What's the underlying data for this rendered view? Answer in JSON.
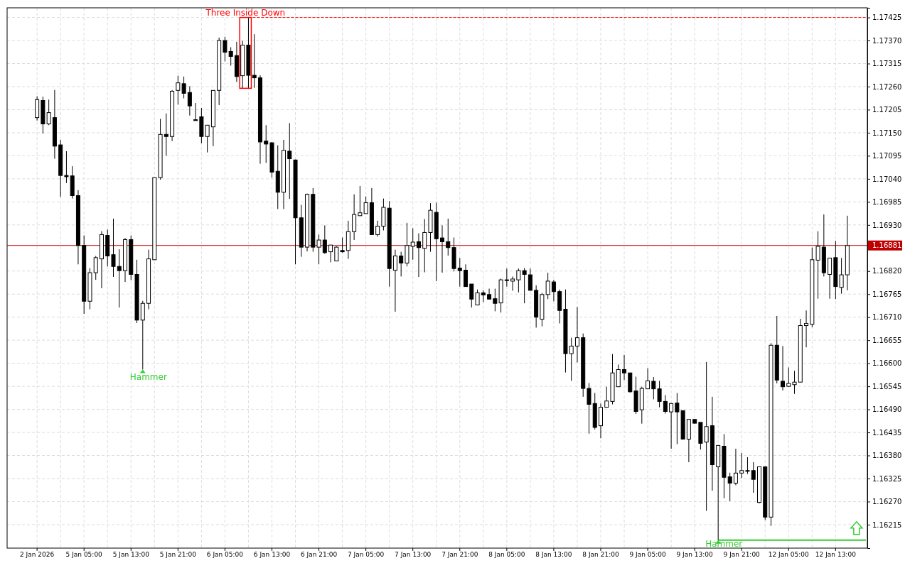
{
  "chart_data": {
    "type": "candlestick",
    "color": "#000000",
    "grid": true,
    "categories": [
      "2 Jan 2026",
      null,
      null,
      null,
      null,
      null,
      null,
      null,
      "5 Jan 05:00",
      null,
      null,
      null,
      null,
      null,
      null,
      null,
      "5 Jan 13:00",
      null,
      null,
      null,
      null,
      null,
      null,
      null,
      "5 Jan 21:00",
      null,
      null,
      null,
      null,
      null,
      null,
      null,
      "6 Jan 05:00",
      null,
      null,
      null,
      null,
      null,
      null,
      null,
      "6 Jan 13:00",
      null,
      null,
      null,
      null,
      null,
      null,
      null,
      "6 Jan 21:00",
      null,
      null,
      null,
      null,
      null,
      null,
      null,
      "7 Jan 05:00",
      null,
      null,
      null,
      null,
      null,
      null,
      null,
      "7 Jan 13:00",
      null,
      null,
      null,
      null,
      null,
      null,
      null,
      "7 Jan 21:00",
      null,
      null,
      null,
      null,
      null,
      null,
      null,
      "8 Jan 05:00",
      null,
      null,
      null,
      null,
      null,
      null,
      null,
      "8 Jan 13:00",
      null,
      null,
      null,
      null,
      null,
      null,
      null,
      "8 Jan 21:00",
      null,
      null,
      null,
      null,
      null,
      null,
      null,
      "9 Jan 05:00",
      null,
      null,
      null,
      null,
      null,
      null,
      null,
      "9 Jan 13:00",
      null,
      null,
      null,
      null,
      null,
      null,
      null,
      "9 Jan 21:00",
      null,
      null,
      null,
      null,
      null,
      null,
      null,
      "12 Jan 05:00",
      null,
      null,
      null,
      null,
      null,
      null,
      null,
      "12 Jan 13:00",
      null,
      null
    ],
    "ohlc": [
      [
        1.17186,
        1.17237,
        1.17179,
        1.17229
      ],
      [
        1.17227,
        1.17236,
        1.17148,
        1.17171
      ],
      [
        1.17171,
        1.17229,
        1.17168,
        1.17198
      ],
      [
        1.17186,
        1.17252,
        1.17088,
        1.17118
      ],
      [
        1.17121,
        1.17133,
        1.16997,
        1.17048
      ],
      [
        1.17048,
        1.17106,
        1.1703,
        1.17045
      ],
      [
        1.17047,
        1.1707,
        1.16993,
        1.17
      ],
      [
        1.17,
        1.17013,
        1.16836,
        1.16881
      ],
      [
        1.16881,
        1.16905,
        1.16718,
        1.16748
      ],
      [
        1.16748,
        1.16827,
        1.16729,
        1.16816
      ],
      [
        1.16816,
        1.16856,
        1.16799,
        1.16852
      ],
      [
        1.16849,
        1.16915,
        1.16779,
        1.16907
      ],
      [
        1.16905,
        1.16919,
        1.16831,
        1.16856
      ],
      [
        1.16859,
        1.16945,
        1.16806,
        1.16831
      ],
      [
        1.16831,
        1.16872,
        1.16733,
        1.16821
      ],
      [
        1.16821,
        1.16899,
        1.16794,
        1.16895
      ],
      [
        1.16895,
        1.16905,
        1.16798,
        1.16812
      ],
      [
        1.16812,
        1.16847,
        1.16696,
        1.16703
      ],
      [
        1.16703,
        1.16749,
        1.16585,
        1.16743
      ],
      [
        1.16743,
        1.16871,
        1.16729,
        1.16849
      ],
      [
        1.16847,
        1.17043,
        1.16847,
        1.17043
      ],
      [
        1.17043,
        1.17183,
        1.17038,
        1.17146
      ],
      [
        1.17146,
        1.17196,
        1.17095,
        1.17141
      ],
      [
        1.17141,
        1.17252,
        1.1713,
        1.17249
      ],
      [
        1.17251,
        1.17286,
        1.17217,
        1.17269
      ],
      [
        1.17267,
        1.17284,
        1.17232,
        1.17244
      ],
      [
        1.17246,
        1.17261,
        1.17191,
        1.17214
      ],
      [
        1.17181,
        1.17221,
        1.17179,
        1.17179
      ],
      [
        1.17188,
        1.17209,
        1.17125,
        1.17141
      ],
      [
        1.17141,
        1.17168,
        1.17103,
        1.17168
      ],
      [
        1.17164,
        1.17251,
        1.17118,
        1.17251
      ],
      [
        1.17251,
        1.17377,
        1.17216,
        1.1737
      ],
      [
        1.1737,
        1.17379,
        1.1732,
        1.17342
      ],
      [
        1.17344,
        1.17354,
        1.1731,
        1.17332
      ],
      [
        1.17334,
        1.17367,
        1.17271,
        1.17284
      ],
      [
        1.17286,
        1.17369,
        1.17256,
        1.17359
      ],
      [
        1.17359,
        1.17425,
        1.17256,
        1.17287
      ],
      [
        1.17287,
        1.17385,
        1.17257,
        1.17281
      ],
      [
        1.17281,
        1.17287,
        1.17076,
        1.17128
      ],
      [
        1.1713,
        1.17168,
        1.17078,
        1.17123
      ],
      [
        1.17126,
        1.17128,
        1.17043,
        1.17056
      ],
      [
        1.17058,
        1.1712,
        1.16968,
        1.17008
      ],
      [
        1.17008,
        1.17133,
        1.16968,
        1.17108
      ],
      [
        1.17106,
        1.17173,
        1.16992,
        1.17088
      ],
      [
        1.17085,
        1.17086,
        1.16836,
        1.16947
      ],
      [
        1.16947,
        1.16978,
        1.16854,
        1.16877
      ],
      [
        1.16877,
        1.17005,
        1.16867,
        1.17003
      ],
      [
        1.17003,
        1.17018,
        1.16866,
        1.16877
      ],
      [
        1.16877,
        1.16907,
        1.16836,
        1.16894
      ],
      [
        1.16894,
        1.16929,
        1.16861,
        1.16864
      ],
      [
        1.16866,
        1.16882,
        1.16841,
        1.16882
      ],
      [
        1.16844,
        1.16879,
        1.16844,
        1.16877
      ],
      [
        1.16869,
        1.169,
        1.16864,
        1.16866
      ],
      [
        1.16869,
        1.1694,
        1.16849,
        1.16914
      ],
      [
        1.16914,
        1.17003,
        1.16894,
        1.16955
      ],
      [
        1.16952,
        1.17023,
        1.16952,
        1.16959
      ],
      [
        1.16957,
        1.16998,
        1.16957,
        1.16983
      ],
      [
        1.16983,
        1.17018,
        1.16907,
        1.16907
      ],
      [
        1.16907,
        1.1694,
        1.16902,
        1.16927
      ],
      [
        1.16927,
        1.16993,
        1.16917,
        1.16972
      ],
      [
        1.1697,
        1.16987,
        1.16783,
        1.16826
      ],
      [
        1.16822,
        1.16871,
        1.16723,
        1.16856
      ],
      [
        1.16856,
        1.16866,
        1.16807,
        1.16839
      ],
      [
        1.16839,
        1.16935,
        1.16831,
        1.16881
      ],
      [
        1.16879,
        1.16922,
        1.16847,
        1.16889
      ],
      [
        1.1689,
        1.1691,
        1.16806,
        1.16876
      ],
      [
        1.16874,
        1.16944,
        1.16817,
        1.16912
      ],
      [
        1.16912,
        1.16982,
        1.16866,
        1.16965
      ],
      [
        1.1696,
        1.16983,
        1.16796,
        1.16897
      ],
      [
        1.16899,
        1.16929,
        1.16816,
        1.1689
      ],
      [
        1.1689,
        1.16945,
        1.16857,
        1.16876
      ],
      [
        1.16876,
        1.169,
        1.16819,
        1.16826
      ],
      [
        1.16827,
        1.16851,
        1.16783,
        1.16821
      ],
      [
        1.16822,
        1.16836,
        1.16783,
        1.16783
      ],
      [
        1.16789,
        1.16789,
        1.16733,
        1.16753
      ],
      [
        1.16739,
        1.16776,
        1.16739,
        1.16768
      ],
      [
        1.16768,
        1.16774,
        1.16746,
        1.16763
      ],
      [
        1.16764,
        1.16778,
        1.16753,
        1.16753
      ],
      [
        1.16754,
        1.16778,
        1.16724,
        1.16743
      ],
      [
        1.16744,
        1.16802,
        1.16721,
        1.16799
      ],
      [
        1.16799,
        1.16826,
        1.16783,
        1.16798
      ],
      [
        1.16796,
        1.16807,
        1.16773,
        1.16801
      ],
      [
        1.16799,
        1.16826,
        1.16769,
        1.16821
      ],
      [
        1.16821,
        1.16827,
        1.16743,
        1.16812
      ],
      [
        1.16811,
        1.16826,
        1.16774,
        1.16774
      ],
      [
        1.16774,
        1.16786,
        1.16685,
        1.1671
      ],
      [
        1.16705,
        1.16768,
        1.16688,
        1.16764
      ],
      [
        1.16764,
        1.16816,
        1.16753,
        1.16796
      ],
      [
        1.16794,
        1.16799,
        1.16748,
        1.16771
      ],
      [
        1.16771,
        1.16776,
        1.16695,
        1.16726
      ],
      [
        1.16729,
        1.16776,
        1.16578,
        1.16623
      ],
      [
        1.16623,
        1.16661,
        1.16558,
        1.16641
      ],
      [
        1.16641,
        1.16734,
        1.16602,
        1.16661
      ],
      [
        1.16661,
        1.16671,
        1.1652,
        1.1654
      ],
      [
        1.1654,
        1.16553,
        1.16432,
        1.16502
      ],
      [
        1.16504,
        1.16529,
        1.16442,
        1.16447
      ],
      [
        1.16451,
        1.16504,
        1.16421,
        1.16495
      ],
      [
        1.16495,
        1.16544,
        1.16494,
        1.1651
      ],
      [
        1.16509,
        1.16622,
        1.16502,
        1.16577
      ],
      [
        1.16544,
        1.16597,
        1.16544,
        1.16585
      ],
      [
        1.16585,
        1.1662,
        1.1656,
        1.16577
      ],
      [
        1.16577,
        1.16577,
        1.1653,
        1.16532
      ],
      [
        1.16534,
        1.16568,
        1.16479,
        1.16485
      ],
      [
        1.16489,
        1.16544,
        1.16456,
        1.1654
      ],
      [
        1.16539,
        1.16588,
        1.16539,
        1.16558
      ],
      [
        1.16557,
        1.16567,
        1.16514,
        1.16539
      ],
      [
        1.16539,
        1.16558,
        1.16495,
        1.16509
      ],
      [
        1.16509,
        1.16524,
        1.1648,
        1.16485
      ],
      [
        1.16484,
        1.16505,
        1.16396,
        1.16504
      ],
      [
        1.16505,
        1.16529,
        1.16407,
        1.16484
      ],
      [
        1.16487,
        1.16487,
        1.16419,
        1.16419
      ],
      [
        1.16419,
        1.16466,
        1.16364,
        1.16466
      ],
      [
        1.16466,
        1.16466,
        1.16456,
        1.16457
      ],
      [
        1.16459,
        1.16459,
        1.16394,
        1.16409
      ],
      [
        1.16412,
        1.16603,
        1.16248,
        1.16449
      ],
      [
        1.16451,
        1.1652,
        1.16296,
        1.16358
      ],
      [
        1.16353,
        1.16404,
        1.16178,
        1.16404
      ],
      [
        1.16402,
        1.16431,
        1.16278,
        1.16328
      ],
      [
        1.16329,
        1.16339,
        1.16271,
        1.16314
      ],
      [
        1.16314,
        1.16396,
        1.16309,
        1.16338
      ],
      [
        1.16338,
        1.16386,
        1.16326,
        1.16344
      ],
      [
        1.16344,
        1.16376,
        1.16336,
        1.16343
      ],
      [
        1.16344,
        1.16364,
        1.16291,
        1.16323
      ],
      [
        1.16268,
        1.16353,
        1.16266,
        1.16353
      ],
      [
        1.16353,
        1.16354,
        1.16226,
        1.16233
      ],
      [
        1.16233,
        1.16648,
        1.16212,
        1.16643
      ],
      [
        1.16643,
        1.16713,
        1.16552,
        1.1656
      ],
      [
        1.16557,
        1.16641,
        1.16535,
        1.16544
      ],
      [
        1.16545,
        1.1659,
        1.16544,
        1.16552
      ],
      [
        1.16549,
        1.16582,
        1.16527,
        1.16555
      ],
      [
        1.16555,
        1.16706,
        1.16555,
        1.1669
      ],
      [
        1.1669,
        1.16726,
        1.16638,
        1.16695
      ],
      [
        1.16693,
        1.16876,
        1.16686,
        1.16847
      ],
      [
        1.16846,
        1.16915,
        1.16754,
        1.16879
      ],
      [
        1.16877,
        1.16955,
        1.16807,
        1.16816
      ],
      [
        1.16812,
        1.16851,
        1.16754,
        1.16851
      ],
      [
        1.16852,
        1.16892,
        1.16753,
        1.16783
      ],
      [
        1.16781,
        1.16851,
        1.16766,
        1.16811
      ],
      [
        1.16811,
        1.16952,
        1.16774,
        1.16881
      ]
    ],
    "ylim": [
      1.16159,
      1.17448
    ],
    "yticks": [
      {
        "value": 1.16215,
        "label": "1.16215"
      },
      {
        "value": 1.1627,
        "label": "1.16270"
      },
      {
        "value": 1.16325,
        "label": "1.16325"
      },
      {
        "value": 1.1638,
        "label": "1.16380"
      },
      {
        "value": 1.16435,
        "label": "1.16435"
      },
      {
        "value": 1.1649,
        "label": "1.16490"
      },
      {
        "value": 1.16545,
        "label": "1.16545"
      },
      {
        "value": 1.166,
        "label": "1.16600"
      },
      {
        "value": 1.16655,
        "label": "1.16655"
      },
      {
        "value": 1.1671,
        "label": "1.16710"
      },
      {
        "value": 1.16765,
        "label": "1.16765"
      },
      {
        "value": 1.1682,
        "label": "1.16820"
      },
      {
        "value": 1.1693,
        "label": "1.16930"
      },
      {
        "value": 1.16985,
        "label": "1.16985"
      },
      {
        "value": 1.1704,
        "label": "1.17040"
      },
      {
        "value": 1.17095,
        "label": "1.17095"
      },
      {
        "value": 1.1715,
        "label": "1.17150"
      },
      {
        "value": 1.17205,
        "label": "1.17205"
      },
      {
        "value": 1.1726,
        "label": "1.17260"
      },
      {
        "value": 1.17315,
        "label": "1.17315"
      },
      {
        "value": 1.1737,
        "label": "1.17370"
      },
      {
        "value": 1.17425,
        "label": "1.17425"
      }
    ],
    "ref_lines": [
      {
        "axis": "y",
        "value": 1.16881,
        "label": "1.16881",
        "color": "#c00000"
      },
      {
        "axis": "y",
        "value": 1.17425,
        "color": "#ff0000",
        "line_style": "dashed"
      },
      {
        "axis": "y",
        "value": 1.16178,
        "color": "#33cc33"
      }
    ],
    "annotations": [
      {
        "text": "Three Inside Down",
        "y": 1.17425
      },
      "Hammer",
      {
        "text": "Hammer",
        "y": 1.16178
      }
    ]
  }
}
